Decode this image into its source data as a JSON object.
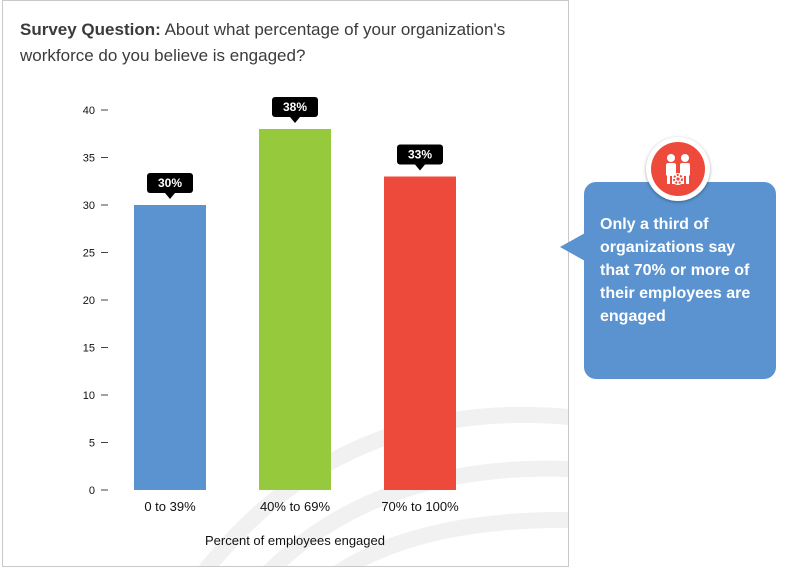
{
  "question": {
    "prefix": "Survey Question:",
    "text": "About what percentage of your organization's workforce do you believe is engaged?"
  },
  "chart_data": {
    "type": "bar",
    "categories": [
      "0 to 39%",
      "40% to 69%",
      "70% to 100%"
    ],
    "values": [
      30,
      38,
      33
    ],
    "data_labels": [
      "30%",
      "38%",
      "33%"
    ],
    "colors": [
      "#5b93d0",
      "#97c93d",
      "#ee4a3c"
    ],
    "xlabel": "Percent of employees engaged",
    "ylabel": "",
    "ylim": [
      0,
      40
    ],
    "yticks": [
      0,
      5,
      10,
      15,
      20,
      25,
      30,
      35,
      40
    ],
    "grid": false
  },
  "callout": {
    "text": "Only a third of organizations say that 70% or more of their employees are engaged",
    "icon": "people-gear-icon",
    "color": "#5b93d0",
    "badge_color": "#ee4a3c"
  }
}
